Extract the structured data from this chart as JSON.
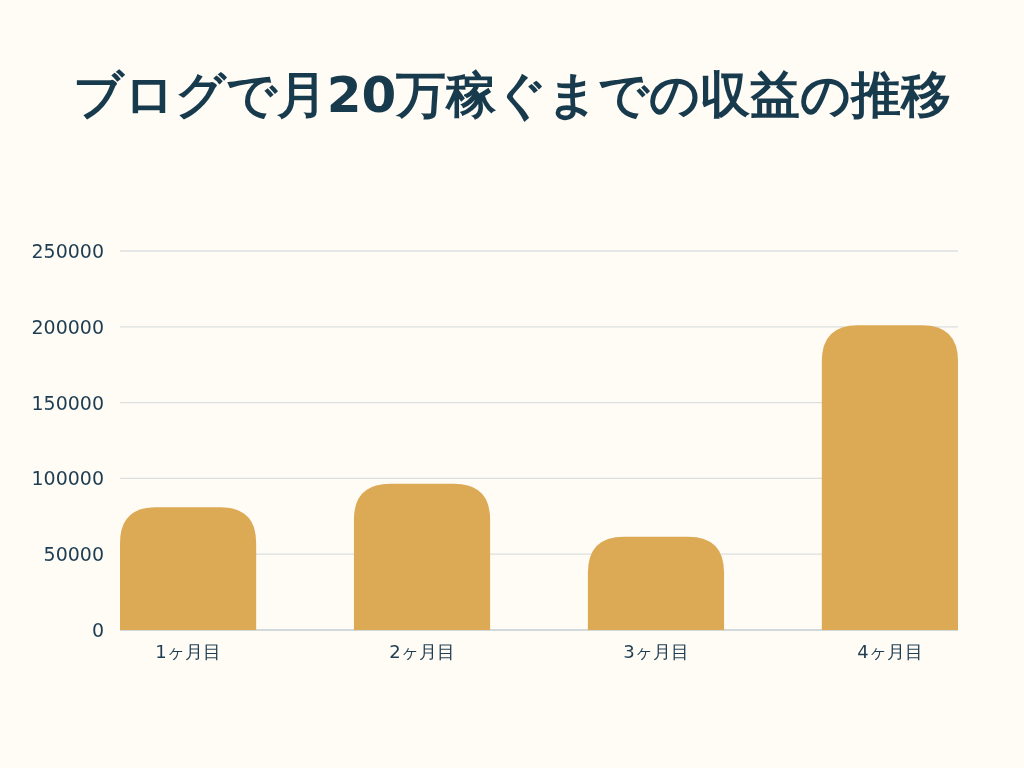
{
  "chart_data": {
    "type": "bar",
    "title": "ブログで月20万稼ぐまでの収益の推移",
    "categories": [
      "1ヶ月目",
      "2ヶ月目",
      "3ヶ月目",
      "4ヶ月目"
    ],
    "values": [
      81000,
      96500,
      61500,
      201000
    ],
    "color": "#dca955",
    "ylim": [
      0,
      250000
    ],
    "yticks": [
      0,
      50000,
      100000,
      150000,
      200000,
      250000
    ],
    "grid": "y"
  }
}
